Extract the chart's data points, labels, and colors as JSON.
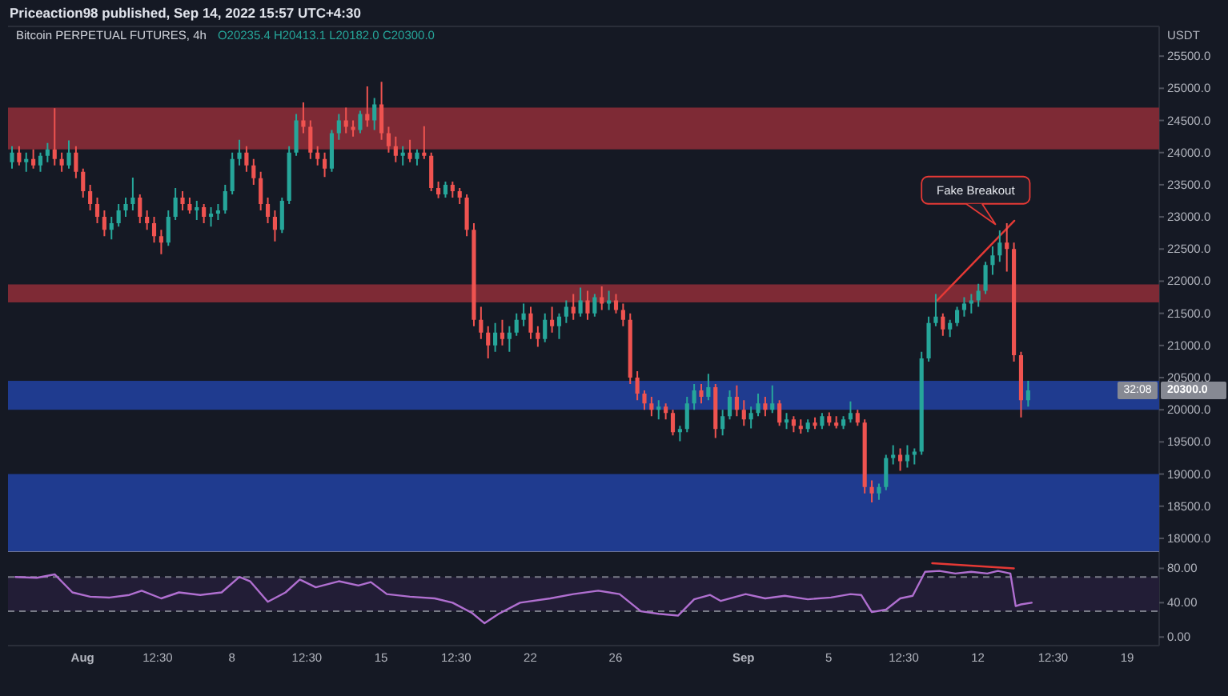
{
  "chart_data": [
    {
      "type": "candlestick",
      "title": "Bitcoin PERPETUAL FUTURES, 4h",
      "subtitle": "O20235.4 H20413.1 L20182.0 C20300.0",
      "ylabel": "USDT",
      "annotations": [
        "Priceaction98 published, Sep 14, 2022 15:57 UTC+4:30",
        "20300.0",
        "32:08",
        {
          "text": "Fake Breakout",
          "x": "2022-09-12T20:00",
          "y": 22880
        }
      ],
      "xlim": [
        "2022-07-28T12:00",
        "2022-09-20T12:00"
      ],
      "ylim": [
        17800,
        25950
      ],
      "yticks": [
        {
          "value": 18000,
          "label": "18000.0"
        },
        {
          "value": 18500,
          "label": "18500.0"
        },
        {
          "value": 19000,
          "label": "19000.0"
        },
        {
          "value": 19500,
          "label": "19500.0"
        },
        {
          "value": 20000,
          "label": "20000.0"
        },
        {
          "value": 20500,
          "label": "20500.0"
        },
        {
          "value": 21000,
          "label": "21000.0"
        },
        {
          "value": 21500,
          "label": "21500.0"
        },
        {
          "value": 22000,
          "label": "22000.0"
        },
        {
          "value": 22500,
          "label": "22500.0"
        },
        {
          "value": 23000,
          "label": "23000.0"
        },
        {
          "value": 23500,
          "label": "23500.0"
        },
        {
          "value": 24000,
          "label": "24000.0"
        },
        {
          "value": 24500,
          "label": "24500.0"
        },
        {
          "value": 25000,
          "label": "25000.0"
        },
        {
          "value": 25500,
          "label": "25500.0"
        }
      ],
      "tick_labels": "y",
      "x": [
        "2022-07-28T16:30",
        "2022-07-29T00:30",
        "2022-07-29T08:30",
        "2022-07-29T16:30",
        "2022-07-30T00:30",
        "2022-07-30T08:30",
        "2022-07-30T16:30",
        "2022-07-31T00:30",
        "2022-07-31T08:30",
        "2022-07-31T16:30",
        "2022-08-01T00:30",
        "2022-08-01T08:30",
        "2022-08-01T16:30",
        "2022-08-02T00:30",
        "2022-08-02T08:30",
        "2022-08-02T16:30",
        "2022-08-03T00:30",
        "2022-08-03T08:30",
        "2022-08-03T16:30",
        "2022-08-04T00:30",
        "2022-08-04T08:30",
        "2022-08-04T16:30",
        "2022-08-05T00:30",
        "2022-08-05T08:30",
        "2022-08-05T16:30",
        "2022-08-06T00:30",
        "2022-08-06T08:30",
        "2022-08-06T16:30",
        "2022-08-07T00:30",
        "2022-08-07T08:30",
        "2022-08-07T16:30",
        "2022-08-08T00:30",
        "2022-08-08T08:30",
        "2022-08-08T16:30",
        "2022-08-09T00:30",
        "2022-08-09T08:30",
        "2022-08-09T16:30",
        "2022-08-10T00:30",
        "2022-08-10T08:30",
        "2022-08-10T16:30",
        "2022-08-11T00:30",
        "2022-08-11T08:30",
        "2022-08-11T16:30",
        "2022-08-12T00:30",
        "2022-08-12T08:30",
        "2022-08-12T16:30",
        "2022-08-13T00:30",
        "2022-08-13T08:30",
        "2022-08-13T16:30",
        "2022-08-14T00:30",
        "2022-08-14T08:30",
        "2022-08-14T16:30",
        "2022-08-15T00:30",
        "2022-08-15T08:30",
        "2022-08-15T16:30",
        "2022-08-16T00:30",
        "2022-08-16T08:30",
        "2022-08-16T16:30",
        "2022-08-17T00:30",
        "2022-08-17T08:30",
        "2022-08-17T16:30",
        "2022-08-18T00:30",
        "2022-08-18T08:30",
        "2022-08-18T16:30",
        "2022-08-19T00:30",
        "2022-08-19T08:30",
        "2022-08-19T16:30",
        "2022-08-20T00:30",
        "2022-08-20T08:30",
        "2022-08-20T16:30",
        "2022-08-21T00:30",
        "2022-08-21T08:30",
        "2022-08-21T16:30",
        "2022-08-22T00:30",
        "2022-08-22T08:30",
        "2022-08-22T16:30",
        "2022-08-23T00:30",
        "2022-08-23T08:30",
        "2022-08-23T16:30",
        "2022-08-24T00:30",
        "2022-08-24T08:30",
        "2022-08-24T16:30",
        "2022-08-25T00:30",
        "2022-08-25T08:30",
        "2022-08-25T16:30",
        "2022-08-26T00:30",
        "2022-08-26T08:30",
        "2022-08-26T16:30",
        "2022-08-27T00:30",
        "2022-08-27T08:30",
        "2022-08-27T16:30",
        "2022-08-28T00:30",
        "2022-08-28T08:30",
        "2022-08-28T16:30",
        "2022-08-29T00:30",
        "2022-08-29T08:30",
        "2022-08-29T16:30",
        "2022-08-30T00:30",
        "2022-08-30T08:30",
        "2022-08-30T16:30",
        "2022-08-31T00:30",
        "2022-08-31T08:30",
        "2022-08-31T16:30",
        "2022-09-01T00:30",
        "2022-09-01T08:30",
        "2022-09-01T16:30",
        "2022-09-02T00:30",
        "2022-09-02T08:30",
        "2022-09-02T16:30",
        "2022-09-03T00:30",
        "2022-09-03T08:30",
        "2022-09-03T16:30",
        "2022-09-04T00:30",
        "2022-09-04T08:30",
        "2022-09-04T16:30",
        "2022-09-05T00:30",
        "2022-09-05T08:30",
        "2022-09-05T16:30",
        "2022-09-06T00:30",
        "2022-09-06T08:30",
        "2022-09-06T16:30",
        "2022-09-07T00:30",
        "2022-09-07T08:30",
        "2022-09-07T16:30",
        "2022-09-08T00:30",
        "2022-09-08T08:30",
        "2022-09-08T16:30",
        "2022-09-09T00:30",
        "2022-09-09T08:30",
        "2022-09-09T16:30",
        "2022-09-10T00:30",
        "2022-09-10T08:30",
        "2022-09-10T16:30",
        "2022-09-11T00:30",
        "2022-09-11T08:30",
        "2022-09-11T16:30",
        "2022-09-12T00:30",
        "2022-09-12T08:30",
        "2022-09-12T16:30",
        "2022-09-13T00:30",
        "2022-09-13T08:30",
        "2022-09-13T16:30",
        "2022-09-14T00:30",
        "2022-09-14T08:30"
      ],
      "ohlc": [
        [
          23850,
          24100,
          23750,
          24000
        ],
        [
          24000,
          24100,
          23800,
          23850
        ],
        [
          23850,
          24000,
          23700,
          23900
        ],
        [
          23900,
          24050,
          23750,
          23800
        ],
        [
          23800,
          24000,
          23700,
          23950
        ],
        [
          23950,
          24150,
          23850,
          24050
        ],
        [
          24050,
          24690,
          23800,
          23900
        ],
        [
          23900,
          24000,
          23700,
          23800
        ],
        [
          23800,
          24190,
          23750,
          24000
        ],
        [
          24000,
          24100,
          23600,
          23700
        ],
        [
          23700,
          23750,
          23300,
          23400
        ],
        [
          23400,
          23500,
          23100,
          23200
        ],
        [
          23200,
          23300,
          22900,
          23000
        ],
        [
          23000,
          23100,
          22700,
          22800
        ],
        [
          22800,
          23000,
          22650,
          22900
        ],
        [
          22900,
          23200,
          22850,
          23100
        ],
        [
          23100,
          23300,
          23000,
          23200
        ],
        [
          23200,
          23610,
          23100,
          23300
        ],
        [
          23300,
          23350,
          22900,
          23000
        ],
        [
          23000,
          23100,
          22800,
          22900
        ],
        [
          22900,
          23000,
          22600,
          22700
        ],
        [
          22700,
          22800,
          22420,
          22600
        ],
        [
          22600,
          23100,
          22550,
          23000
        ],
        [
          23000,
          23450,
          22950,
          23300
        ],
        [
          23300,
          23400,
          23100,
          23200
        ],
        [
          23200,
          23300,
          23050,
          23100
        ],
        [
          23100,
          23250,
          22950,
          23150
        ],
        [
          23150,
          23200,
          22900,
          23000
        ],
        [
          23000,
          23150,
          22850,
          23050
        ],
        [
          23050,
          23200,
          22950,
          23100
        ],
        [
          23100,
          23500,
          23050,
          23400
        ],
        [
          23400,
          24000,
          23350,
          23900
        ],
        [
          23900,
          24200,
          23800,
          24000
        ],
        [
          24000,
          24100,
          23700,
          23800
        ],
        [
          23800,
          23900,
          23500,
          23600
        ],
        [
          23600,
          23700,
          23100,
          23200
        ],
        [
          23200,
          23300,
          22900,
          23000
        ],
        [
          23000,
          23100,
          22620,
          22800
        ],
        [
          22800,
          23300,
          22750,
          23250
        ],
        [
          23250,
          24100,
          23200,
          24000
        ],
        [
          24000,
          24600,
          23950,
          24500
        ],
        [
          24500,
          24780,
          24300,
          24400
        ],
        [
          24400,
          24500,
          23900,
          24000
        ],
        [
          24000,
          24100,
          23800,
          23900
        ],
        [
          23900,
          24000,
          23620,
          23750
        ],
        [
          23750,
          24350,
          23700,
          24300
        ],
        [
          24300,
          24600,
          24200,
          24500
        ],
        [
          24500,
          24700,
          24300,
          24400
        ],
        [
          24400,
          24500,
          24250,
          24350
        ],
        [
          24350,
          24650,
          24300,
          24600
        ],
        [
          24600,
          25030,
          24400,
          24500
        ],
        [
          24500,
          24850,
          24350,
          24750
        ],
        [
          24750,
          25100,
          24200,
          24300
        ],
        [
          24300,
          24400,
          24000,
          24100
        ],
        [
          24100,
          24250,
          23850,
          23950
        ],
        [
          23950,
          24100,
          23800,
          24000
        ],
        [
          24000,
          24200,
          23850,
          23900
        ],
        [
          23900,
          24050,
          23800,
          24000
        ],
        [
          24000,
          24410,
          23900,
          23950
        ],
        [
          23950,
          24000,
          23400,
          23450
        ],
        [
          23450,
          23550,
          23290,
          23350
        ],
        [
          23350,
          23550,
          23300,
          23500
        ],
        [
          23500,
          23550,
          23300,
          23400
        ],
        [
          23400,
          23450,
          23200,
          23300
        ],
        [
          23300,
          23350,
          22700,
          22800
        ],
        [
          22800,
          22900,
          21300,
          21400
        ],
        [
          21400,
          21600,
          21100,
          21200
        ],
        [
          21200,
          21300,
          20800,
          21000
        ],
        [
          21000,
          21350,
          20900,
          21200
        ],
        [
          21200,
          21400,
          21000,
          21100
        ],
        [
          21100,
          21300,
          20900,
          21200
        ],
        [
          21200,
          21500,
          21150,
          21400
        ],
        [
          21400,
          21650,
          21300,
          21500
        ],
        [
          21500,
          21600,
          21100,
          21200
        ],
        [
          21200,
          21300,
          20980,
          21100
        ],
        [
          21100,
          21500,
          21050,
          21400
        ],
        [
          21400,
          21600,
          21200,
          21300
        ],
        [
          21300,
          21500,
          21100,
          21450
        ],
        [
          21450,
          21700,
          21350,
          21600
        ],
        [
          21600,
          21800,
          21400,
          21500
        ],
        [
          21500,
          21900,
          21450,
          21700
        ],
        [
          21700,
          21850,
          21400,
          21500
        ],
        [
          21500,
          21800,
          21450,
          21750
        ],
        [
          21750,
          21920,
          21550,
          21650
        ],
        [
          21650,
          21850,
          21550,
          21700
        ],
        [
          21700,
          21800,
          21500,
          21550
        ],
        [
          21550,
          21650,
          21300,
          21400
        ],
        [
          21400,
          21500,
          20400,
          20500
        ],
        [
          20500,
          20600,
          20150,
          20250
        ],
        [
          20250,
          20300,
          20000,
          20100
        ],
        [
          20100,
          20200,
          19900,
          20000
        ],
        [
          20000,
          20150,
          19850,
          20050
        ],
        [
          20050,
          20100,
          19850,
          19950
        ],
        [
          19950,
          20000,
          19600,
          19650
        ],
        [
          19650,
          19750,
          19510,
          19700
        ],
        [
          19700,
          20200,
          19650,
          20100
        ],
        [
          20100,
          20400,
          20000,
          20300
        ],
        [
          20300,
          20400,
          20100,
          20200
        ],
        [
          20200,
          20560,
          20150,
          20350
        ],
        [
          20350,
          20400,
          19560,
          19700
        ],
        [
          19700,
          20000,
          19600,
          19900
        ],
        [
          19900,
          20300,
          19850,
          20200
        ],
        [
          20200,
          20380,
          19900,
          20000
        ],
        [
          20000,
          20150,
          19750,
          19850
        ],
        [
          19850,
          20050,
          19710,
          19950
        ],
        [
          19950,
          20250,
          19900,
          20100
        ],
        [
          20100,
          20200,
          19900,
          20000
        ],
        [
          20000,
          20380,
          19950,
          20100
        ],
        [
          20100,
          20150,
          19750,
          19800
        ],
        [
          19800,
          19950,
          19700,
          19850
        ],
        [
          19850,
          19900,
          19650,
          19750
        ],
        [
          19750,
          19850,
          19630,
          19700
        ],
        [
          19700,
          19850,
          19650,
          19800
        ],
        [
          19800,
          19880,
          19700,
          19750
        ],
        [
          19750,
          19950,
          19700,
          19900
        ],
        [
          19900,
          19960,
          19750,
          19800
        ],
        [
          19800,
          19900,
          19710,
          19750
        ],
        [
          19750,
          19900,
          19700,
          19850
        ],
        [
          19850,
          20130,
          19800,
          19950
        ],
        [
          19950,
          20000,
          19750,
          19800
        ],
        [
          19800,
          19850,
          18700,
          18800
        ],
        [
          18800,
          18900,
          18560,
          18700
        ],
        [
          18700,
          18850,
          18600,
          18800
        ],
        [
          18800,
          19300,
          18750,
          19250
        ],
        [
          19250,
          19450,
          19150,
          19300
        ],
        [
          19300,
          19400,
          19050,
          19200
        ],
        [
          19200,
          19450,
          19100,
          19300
        ],
        [
          19300,
          19400,
          19150,
          19350
        ],
        [
          19350,
          20900,
          19300,
          20800
        ],
        [
          20800,
          21450,
          20750,
          21350
        ],
        [
          21350,
          21800,
          21300,
          21450
        ],
        [
          21450,
          21500,
          21150,
          21250
        ],
        [
          21250,
          21400,
          21130,
          21350
        ],
        [
          21350,
          21600,
          21300,
          21550
        ],
        [
          21550,
          21750,
          21450,
          21650
        ],
        [
          21650,
          21800,
          21500,
          21700
        ],
        [
          21700,
          21960,
          21600,
          21850
        ],
        [
          21850,
          22300,
          21800,
          22250
        ],
        [
          22250,
          22540,
          22100,
          22400
        ],
        [
          22400,
          22790,
          22300,
          22600
        ],
        [
          22600,
          22900,
          22150,
          22500
        ],
        [
          22500,
          22600,
          20750,
          20850
        ],
        [
          20850,
          20900,
          19880,
          20150
        ],
        [
          20150,
          20450,
          20050,
          20300
        ]
      ],
      "colors": [
        "#26a69a",
        "#ef5350",
        "#26a69a",
        "#ef5350",
        "#26a69a",
        "#26a69a",
        "#ef5350",
        "#ef5350",
        "#26a69a",
        "#ef5350",
        "#ef5350",
        "#ef5350",
        "#ef5350",
        "#ef5350",
        "#26a69a",
        "#26a69a",
        "#26a69a",
        "#26a69a",
        "#ef5350",
        "#ef5350",
        "#ef5350",
        "#ef5350",
        "#26a69a",
        "#26a69a",
        "#ef5350",
        "#ef5350",
        "#26a69a",
        "#ef5350",
        "#26a69a",
        "#26a69a",
        "#26a69a",
        "#26a69a",
        "#26a69a",
        "#ef5350",
        "#ef5350",
        "#ef5350",
        "#ef5350",
        "#ef5350",
        "#26a69a",
        "#26a69a",
        "#26a69a",
        "#ef5350",
        "#ef5350",
        "#ef5350",
        "#ef5350",
        "#26a69a",
        "#26a69a",
        "#ef5350",
        "#ef5350",
        "#26a69a",
        "#ef5350",
        "#26a69a",
        "#ef5350",
        "#ef5350",
        "#ef5350",
        "#26a69a",
        "#ef5350",
        "#26a69a",
        "#ef5350",
        "#ef5350",
        "#ef5350",
        "#26a69a",
        "#ef5350",
        "#ef5350",
        "#ef5350",
        "#ef5350",
        "#ef5350",
        "#ef5350",
        "#26a69a",
        "#ef5350",
        "#26a69a",
        "#26a69a",
        "#26a69a",
        "#ef5350",
        "#ef5350",
        "#26a69a",
        "#ef5350",
        "#26a69a",
        "#26a69a",
        "#ef5350",
        "#26a69a",
        "#ef5350",
        "#26a69a",
        "#ef5350",
        "#26a69a",
        "#ef5350",
        "#ef5350",
        "#ef5350",
        "#ef5350",
        "#ef5350",
        "#ef5350",
        "#26a69a",
        "#ef5350",
        "#ef5350",
        "#26a69a",
        "#26a69a",
        "#26a69a",
        "#ef5350",
        "#26a69a",
        "#ef5350",
        "#26a69a",
        "#26a69a",
        "#ef5350",
        "#ef5350",
        "#26a69a",
        "#26a69a",
        "#ef5350",
        "#26a69a",
        "#ef5350",
        "#26a69a",
        "#ef5350",
        "#ef5350",
        "#26a69a",
        "#ef5350",
        "#26a69a",
        "#ef5350",
        "#ef5350",
        "#26a69a",
        "#26a69a",
        "#ef5350",
        "#ef5350",
        "#ef5350",
        "#26a69a",
        "#26a69a",
        "#26a69a",
        "#ef5350",
        "#26a69a",
        "#26a69a",
        "#26a69a",
        "#26a69a",
        "#26a69a",
        "#ef5350",
        "#26a69a",
        "#26a69a",
        "#26a69a",
        "#26a69a",
        "#26a69a",
        "#26a69a",
        "#26a69a",
        "#26a69a",
        "#ef5350",
        "#ef5350",
        "#ef5350",
        "#26a69a"
      ],
      "series": [
        {
          "type": "line",
          "color": "#e53935",
          "x": [
            "2022-09-10T02:00",
            "2022-09-13T17:00"
          ],
          "values": [
            21700,
            22940
          ]
        }
      ],
      "bands": [
        {
          "axis": "y",
          "from": 24050,
          "to": 24700,
          "color": "#7e2a35"
        },
        {
          "axis": "y",
          "from": 21670,
          "to": 21950,
          "color": "#7e2a35"
        },
        {
          "axis": "y",
          "from": 20000,
          "to": 20450,
          "color": "#1f3b8f"
        },
        {
          "axis": "y",
          "from": 17800,
          "to": 19000,
          "color": "#1f3b8f"
        }
      ]
    },
    {
      "type": "line",
      "xlim": [
        "2022-07-28T12:00",
        "2022-09-20T12:00"
      ],
      "ylim": [
        -10,
        100
      ],
      "xticks": [
        {
          "value": "2022-08-01",
          "label": "Aug"
        },
        {
          "value": "2022-08-04T12:30",
          "label": "12:30"
        },
        {
          "value": "2022-08-08",
          "label": "8"
        },
        {
          "value": "2022-08-11T12:30",
          "label": "12:30"
        },
        {
          "value": "2022-08-15",
          "label": "15"
        },
        {
          "value": "2022-08-18T12:30",
          "label": "12:30"
        },
        {
          "value": "2022-08-22",
          "label": "22"
        },
        {
          "value": "2022-08-26",
          "label": "26"
        },
        {
          "value": "2022-09-01",
          "label": "Sep"
        },
        {
          "value": "2022-09-05",
          "label": "5"
        },
        {
          "value": "2022-09-08T12:30",
          "label": "12:30"
        },
        {
          "value": "2022-09-12",
          "label": "12"
        },
        {
          "value": "2022-09-15T12:30",
          "label": "12:30"
        },
        {
          "value": "2022-09-19",
          "label": "19"
        }
      ],
      "yticks": [
        {
          "value": 0,
          "label": "0.00"
        },
        {
          "value": 40,
          "label": "40.00"
        },
        {
          "value": 80,
          "label": "80.00"
        }
      ],
      "series": [
        {
          "color": "#b06fd0",
          "x": [
            "2022-07-28T20:30",
            "2022-07-29T20:30",
            "2022-07-30T16:30",
            "2022-07-31T12:30",
            "2022-08-01T08:30",
            "2022-08-02T06:30",
            "2022-08-03T04:30",
            "2022-08-03T18:30",
            "2022-08-04T16:30",
            "2022-08-05T12:30",
            "2022-08-06T12:30",
            "2022-08-07T12:30",
            "2022-08-08T08:30",
            "2022-08-08T20:30",
            "2022-08-09T16:30",
            "2022-08-10T12:30",
            "2022-08-11T04:30",
            "2022-08-11T22:30",
            "2022-08-13T00:30",
            "2022-08-13T22:30",
            "2022-08-14T12:30",
            "2022-08-15T06:30",
            "2022-08-16T08:30",
            "2022-08-17T12:30",
            "2022-08-18T08:30",
            "2022-08-19T06:30",
            "2022-08-19T20:30",
            "2022-08-20T12:30",
            "2022-08-21T12:30",
            "2022-08-22T22:30",
            "2022-08-24T00:30",
            "2022-08-25T04:30",
            "2022-08-26T04:30",
            "2022-08-27T04:30",
            "2022-08-28T00:30",
            "2022-08-28T22:30",
            "2022-08-29T16:30",
            "2022-08-30T10:30",
            "2022-08-30T22:30",
            "2022-09-01T02:30",
            "2022-09-02T00:30",
            "2022-09-02T22:30",
            "2022-09-04T00:30",
            "2022-09-05T02:30",
            "2022-09-06T00:30",
            "2022-09-06T12:30",
            "2022-09-07T00:30",
            "2022-09-07T16:30",
            "2022-09-08T08:30",
            "2022-09-08T22:30",
            "2022-09-09T12:30",
            "2022-09-10T04:30",
            "2022-09-10T22:30",
            "2022-09-11T16:30",
            "2022-09-12T10:30",
            "2022-09-12T22:30",
            "2022-09-13T12:30",
            "2022-09-13T18:30",
            "2022-09-14T00:30",
            "2022-09-14T12:30"
          ],
          "values": [
            70,
            69,
            73,
            52,
            47,
            46,
            49,
            54,
            45,
            52,
            49,
            52,
            70,
            65,
            41,
            52,
            67,
            58,
            65,
            60,
            64,
            50,
            47,
            45,
            40,
            28,
            16,
            27,
            40,
            45,
            50,
            54,
            50,
            30,
            27,
            25,
            44,
            49,
            42,
            50,
            45,
            48,
            44,
            46,
            50,
            49,
            29,
            32,
            45,
            48,
            76,
            77,
            74,
            76,
            74,
            77,
            74,
            36,
            38,
            40
          ]
        },
        {
          "color": "#e53935",
          "x": [
            "2022-09-09T20:30",
            "2022-09-13T16:30"
          ],
          "values": [
            86,
            80
          ]
        }
      ],
      "bands": [
        {
          "axis": "y",
          "from": 30,
          "to": 70,
          "color": "#221d36"
        }
      ],
      "ref_lines": [
        {
          "axis": "y",
          "value": 70,
          "color": "#787b86",
          "line_style": "dashed"
        },
        {
          "axis": "y",
          "value": 30,
          "color": "#787b86",
          "line_style": "dashed"
        }
      ]
    }
  ]
}
